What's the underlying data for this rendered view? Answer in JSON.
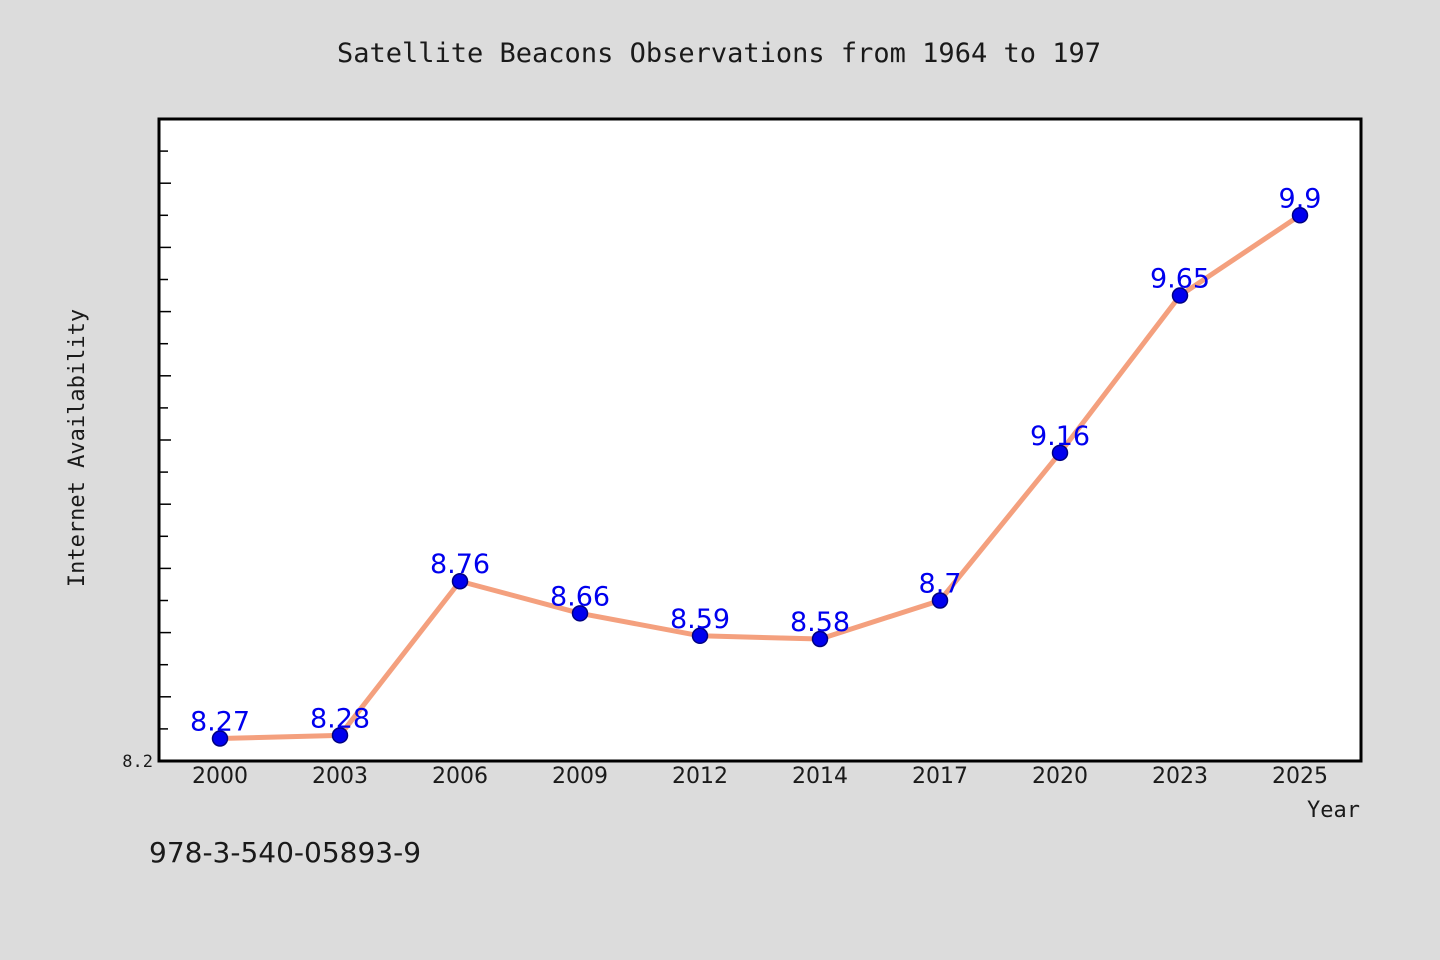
{
  "colors": {
    "background": "#dcdcdc",
    "plot_area": "#ffffff",
    "line": "#f4a07e",
    "marker_fill": "#0000ee",
    "marker_edge": "#000080",
    "data_label": "#0000ee",
    "text": "#1a1a1a"
  },
  "footer": {
    "isbn": "978-3-540-05893-9"
  },
  "chart_data": {
    "type": "line",
    "title": "Satellite Beacons Observations from 1964 to 197",
    "xlabel": "Year",
    "ylabel": "Internet Availability",
    "categories": [
      "2000",
      "2003",
      "2006",
      "2009",
      "2012",
      "2014",
      "2017",
      "2020",
      "2023",
      "2025"
    ],
    "series": [
      {
        "values": [
          8.27,
          8.28,
          8.76,
          8.66,
          8.59,
          8.58,
          8.7,
          9.16,
          9.65,
          9.9
        ],
        "labels": [
          "8.27",
          "8.28",
          "8.76",
          "8.66",
          "8.59",
          "8.58",
          "8.7",
          "9.16",
          "9.65",
          "9.9"
        ]
      }
    ],
    "ylim": [
      8.2,
      10.2
    ],
    "y_tick_labels": [
      "8.2"
    ],
    "grid": false,
    "legend": "none"
  }
}
